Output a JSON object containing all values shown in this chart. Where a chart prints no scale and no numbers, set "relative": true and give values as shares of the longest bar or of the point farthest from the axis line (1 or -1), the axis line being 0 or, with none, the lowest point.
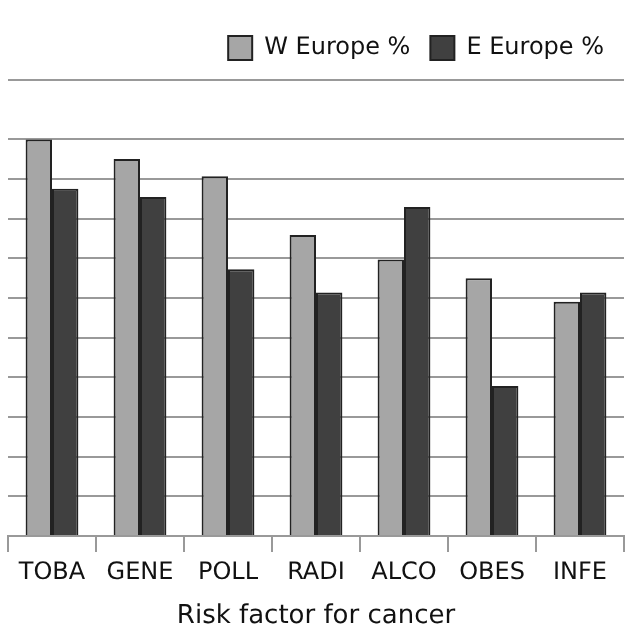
{
  "chart_data": {
    "type": "bar",
    "xlabel": "Risk factor for cancer",
    "relative": true,
    "grid": true,
    "legend": "top right",
    "categories": [
      "TOBA",
      "GENE",
      "POLL",
      "RADI",
      "ALCO",
      "OBES",
      "INFE"
    ],
    "series": [
      {
        "name": "W Europe %",
        "color": "#a6a6a6",
        "values": [
          1,
          0.951,
          0.907,
          0.759,
          0.697,
          0.65,
          0.591
        ]
      },
      {
        "name": "E Europe %",
        "color": "#404040",
        "values": [
          0.876,
          0.855,
          0.673,
          0.614,
          0.83,
          0.378,
          0.614
        ]
      }
    ]
  }
}
